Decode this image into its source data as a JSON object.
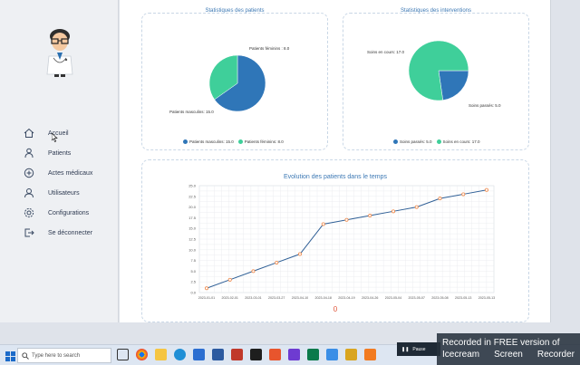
{
  "sidebar": {
    "items": [
      {
        "label": "Accueil",
        "icon": "home-icon"
      },
      {
        "label": "Patients",
        "icon": "patient-icon"
      },
      {
        "label": "Actes médicaux",
        "icon": "medical-act-icon"
      },
      {
        "label": "Utilisateurs",
        "icon": "user-icon"
      },
      {
        "label": "Configurations",
        "icon": "settings-icon"
      },
      {
        "label": "Se déconnecter",
        "icon": "logout-icon"
      }
    ]
  },
  "patients_card": {
    "title": "Statistiques des patients",
    "slice_labels": {
      "female": "Patients féminins : 8.0",
      "male": "Patients masculins: 15.0"
    },
    "legend": [
      {
        "label": "Patients masculins: 15.0",
        "color": "#2f76b8"
      },
      {
        "label": "Patients féminins: 8.0",
        "color": "#3fcf9a"
      }
    ]
  },
  "interventions_card": {
    "title": "Statistiques des interventions",
    "slice_labels": {
      "ongoing": "Soins en cours: 17.0",
      "done": "Soins passés: 5.0"
    },
    "legend": [
      {
        "label": "Soins passés: 5.0",
        "color": "#2f76b8"
      },
      {
        "label": "Soins en cours: 17.0",
        "color": "#3fcf9a"
      }
    ]
  },
  "evolution_card": {
    "title": "Evolution des patients dans le temps",
    "footer_value": "0"
  },
  "chart_data": [
    {
      "type": "pie",
      "title": "Statistiques des patients",
      "categories": [
        "Patients masculins",
        "Patients féminins"
      ],
      "values": [
        15.0,
        8.0
      ],
      "colors": [
        "#2f76b8",
        "#3fcf9a"
      ]
    },
    {
      "type": "pie",
      "title": "Statistiques des interventions",
      "categories": [
        "Soins passés",
        "Soins en cours"
      ],
      "values": [
        5.0,
        17.0
      ],
      "colors": [
        "#2f76b8",
        "#3fcf9a"
      ]
    },
    {
      "type": "line",
      "title": "Evolution des patients dans le temps",
      "x": [
        "2023-01-01",
        "2023-02-01",
        "2023-03-01",
        "2023-03-27",
        "2023-04-10",
        "2023-04-18",
        "2023-04-19",
        "2023-04-26",
        "2023-05-04",
        "2023-05-07",
        "2023-05-08",
        "2023-05-13",
        "2023-05-13"
      ],
      "values": [
        1.0,
        3.0,
        5.0,
        7.0,
        9.0,
        16.0,
        17.0,
        18.0,
        19.0,
        20.0,
        22.0,
        23.0,
        24.0
      ],
      "yticks": [
        "0.0",
        "2.5",
        "5.0",
        "7.5",
        "10.0",
        "12.5",
        "15.0",
        "17.5",
        "20.0",
        "22.5",
        "25.0"
      ],
      "ylim": [
        0,
        25
      ],
      "grid": true,
      "line_color": "#2f5f96",
      "marker_color": "#f08a4b"
    }
  ],
  "taskbar": {
    "search_placeholder": "Type here to search",
    "tray_label": "Pause"
  },
  "watermark": {
    "line1": "Recorded in FREE version of",
    "line2a": "Icecream",
    "line2b": "Screen",
    "line2c": "Recorder"
  }
}
